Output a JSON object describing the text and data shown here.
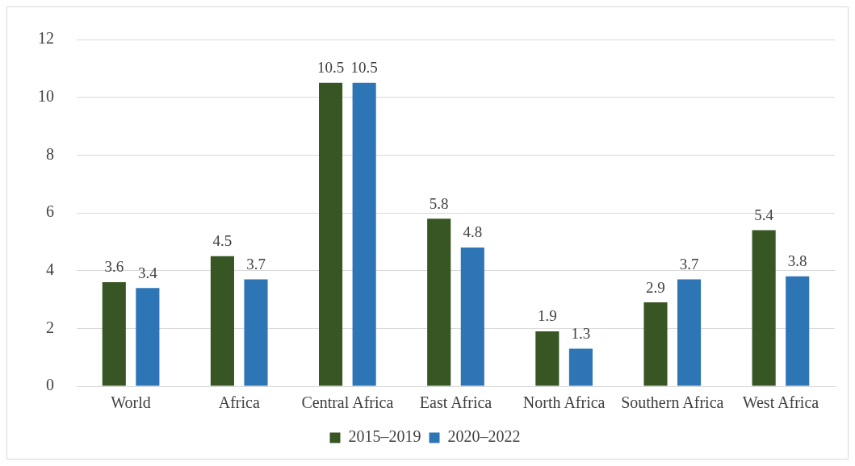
{
  "chart_data": {
    "type": "bar",
    "categories": [
      "World",
      "Africa",
      "Central Africa",
      "East Africa",
      "North Africa",
      "Southern Africa",
      "West Africa"
    ],
    "series": [
      {
        "name": "2015–2019",
        "color": "#375623",
        "values": [
          3.6,
          4.5,
          10.5,
          5.8,
          1.9,
          2.9,
          5.4
        ]
      },
      {
        "name": "2020–2022",
        "color": "#2e75b6",
        "values": [
          3.4,
          3.7,
          10.5,
          4.8,
          1.3,
          3.7,
          3.8
        ]
      }
    ],
    "ylim": [
      0,
      12
    ],
    "yticks": [
      0,
      2,
      4,
      6,
      8,
      10,
      12
    ],
    "grid": "y",
    "legend": "bottom",
    "data_labels": true
  }
}
